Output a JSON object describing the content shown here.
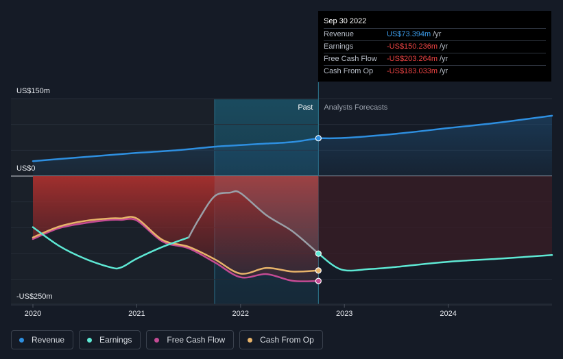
{
  "chart_data": {
    "type": "line",
    "x_ticks": [
      "2020",
      "2021",
      "2022",
      "2023",
      "2024"
    ],
    "x_range": [
      2020.0,
      2025.0
    ],
    "ylim": [
      -250,
      150
    ],
    "y_ticks": [
      {
        "label": "US$150m",
        "value": 150
      },
      {
        "label": "US$0",
        "value": 0
      },
      {
        "label": "-US$250m",
        "value": -250
      }
    ],
    "past_label": "Past",
    "forecast_label": "Analysts Forecasts",
    "divider_x": 2022.75,
    "highlight_band": [
      2021.75,
      2022.75
    ],
    "series": [
      {
        "name": "Revenue",
        "color": "#2e8fe0",
        "dot_value": 73.394,
        "past": [
          [
            2020.0,
            29
          ],
          [
            2020.25,
            33
          ],
          [
            2020.5,
            37
          ],
          [
            2020.75,
            41
          ],
          [
            2021.0,
            45
          ],
          [
            2021.25,
            48
          ],
          [
            2021.5,
            52
          ],
          [
            2021.75,
            57
          ],
          [
            2022.0,
            60
          ],
          [
            2022.25,
            63
          ],
          [
            2022.5,
            66
          ],
          [
            2022.75,
            73.4
          ]
        ],
        "forecast": [
          [
            2022.75,
            73.4
          ],
          [
            2023.0,
            74
          ],
          [
            2023.5,
            82
          ],
          [
            2024.0,
            93
          ],
          [
            2024.5,
            104
          ],
          [
            2025.0,
            117
          ]
        ]
      },
      {
        "name": "Earnings",
        "color": "#5ee8d4",
        "dot_value": -150.236,
        "past": [
          [
            2020.0,
            -99
          ],
          [
            2020.25,
            -135
          ],
          [
            2020.5,
            -160
          ],
          [
            2020.75,
            -177
          ],
          [
            2020.85,
            -177
          ],
          [
            2021.0,
            -160
          ],
          [
            2021.25,
            -137
          ],
          [
            2021.5,
            -119
          ],
          [
            2021.6,
            -83
          ],
          [
            2021.75,
            -39
          ],
          [
            2021.9,
            -32
          ],
          [
            2022.0,
            -33
          ],
          [
            2022.25,
            -76
          ],
          [
            2022.5,
            -107
          ],
          [
            2022.75,
            -150.2
          ]
        ],
        "forecast": [
          [
            2022.75,
            -150.2
          ],
          [
            2022.97,
            -181
          ],
          [
            2023.25,
            -180
          ],
          [
            2023.5,
            -176
          ],
          [
            2024.0,
            -166
          ],
          [
            2024.5,
            -160
          ],
          [
            2025.0,
            -153
          ]
        ]
      },
      {
        "name": "Free Cash Flow",
        "color": "#c44b94",
        "dot_value": -203.264,
        "past": [
          [
            2020.0,
            -122
          ],
          [
            2020.25,
            -101
          ],
          [
            2020.5,
            -91
          ],
          [
            2020.75,
            -85
          ],
          [
            2020.85,
            -85
          ],
          [
            2021.0,
            -86
          ],
          [
            2021.25,
            -127
          ],
          [
            2021.5,
            -140
          ],
          [
            2021.75,
            -167
          ],
          [
            2022.0,
            -196
          ],
          [
            2022.25,
            -190
          ],
          [
            2022.5,
            -203
          ],
          [
            2022.75,
            -203.3
          ]
        ],
        "forecast": []
      },
      {
        "name": "Cash From Op",
        "color": "#e7b36a",
        "dot_value": -183.033,
        "past": [
          [
            2020.0,
            -119
          ],
          [
            2020.25,
            -98
          ],
          [
            2020.5,
            -87
          ],
          [
            2020.75,
            -82
          ],
          [
            2020.85,
            -82
          ],
          [
            2021.0,
            -82
          ],
          [
            2021.25,
            -124
          ],
          [
            2021.5,
            -137
          ],
          [
            2021.75,
            -161
          ],
          [
            2022.0,
            -189
          ],
          [
            2022.25,
            -178
          ],
          [
            2022.5,
            -185
          ],
          [
            2022.75,
            -183
          ]
        ],
        "forecast": []
      }
    ]
  },
  "tooltip": {
    "date": "Sep 30 2022",
    "rows": [
      {
        "label": "Revenue",
        "value": "US$73.394m",
        "unit": "/yr"
      },
      {
        "label": "Earnings",
        "value": "-US$150.236m",
        "unit": "/yr"
      },
      {
        "label": "Free Cash Flow",
        "value": "-US$203.264m",
        "unit": "/yr"
      },
      {
        "label": "Cash From Op",
        "value": "-US$183.033m",
        "unit": "/yr"
      }
    ]
  },
  "legend": [
    {
      "label": "Revenue",
      "color": "#2e8fe0"
    },
    {
      "label": "Earnings",
      "color": "#5ee8d4"
    },
    {
      "label": "Free Cash Flow",
      "color": "#c44b94"
    },
    {
      "label": "Cash From Op",
      "color": "#e7b36a"
    }
  ]
}
